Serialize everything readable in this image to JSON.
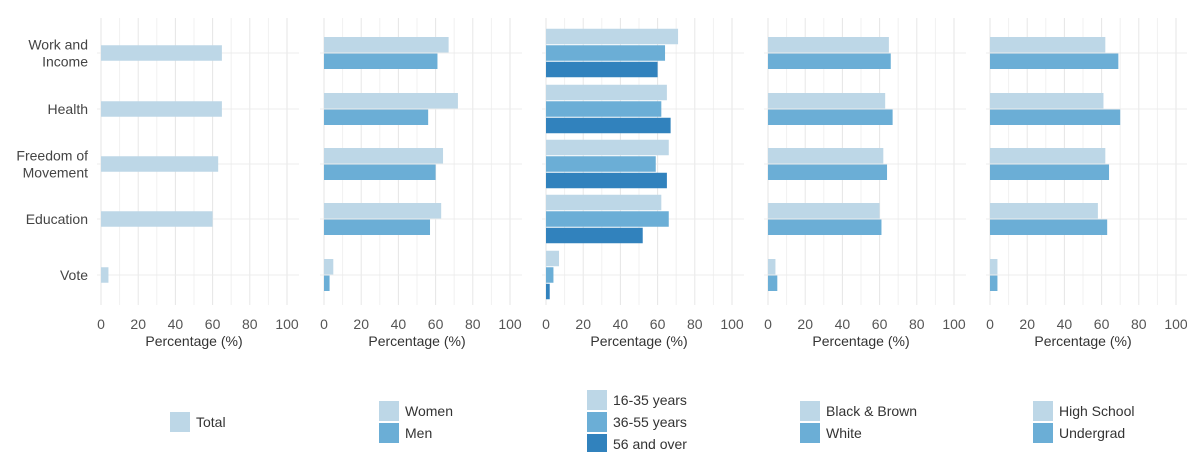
{
  "chart_data": {
    "type": "bar",
    "orientation": "horizontal",
    "categories": [
      "Work and Income",
      "Health",
      "Freedom of Movement",
      "Education",
      "Vote"
    ],
    "category_label_lines": [
      [
        "Work and",
        "Income"
      ],
      [
        "Health"
      ],
      [
        "Freedom of",
        "Movement"
      ],
      [
        "Education"
      ],
      [
        "Vote"
      ]
    ],
    "x_ticks": [
      "0",
      "20",
      "40",
      "60",
      "80",
      "100"
    ],
    "xlim": [
      0,
      100
    ],
    "grid": true,
    "panels": [
      {
        "xlabel": "Percentage (%)",
        "series": [
          {
            "name": "Total",
            "color": "#bdd7e7",
            "values": [
              65,
              65,
              63,
              60,
              4
            ]
          }
        ]
      },
      {
        "xlabel": "Percentage (%)",
        "series": [
          {
            "name": "Women",
            "color": "#bdd7e7",
            "values": [
              67,
              72,
              64,
              63,
              5
            ]
          },
          {
            "name": "Men",
            "color": "#6baed6",
            "values": [
              61,
              56,
              60,
              57,
              3
            ]
          }
        ]
      },
      {
        "xlabel": "Percentage (%)",
        "series": [
          {
            "name": "16-35 years",
            "color": "#bdd7e7",
            "values": [
              71,
              65,
              66,
              62,
              7
            ]
          },
          {
            "name": "36-55 years",
            "color": "#6baed6",
            "values": [
              64,
              62,
              59,
              66,
              4
            ]
          },
          {
            "name": "56 and over",
            "color": "#3182bd",
            "values": [
              60,
              67,
              65,
              52,
              2
            ]
          }
        ]
      },
      {
        "xlabel": "Percentage (%)",
        "series": [
          {
            "name": "Black & Brown",
            "color": "#bdd7e7",
            "values": [
              65,
              63,
              62,
              60,
              4
            ]
          },
          {
            "name": "White",
            "color": "#6baed6",
            "values": [
              66,
              67,
              64,
              61,
              5
            ]
          }
        ]
      },
      {
        "xlabel": "Percentage (%)",
        "series": [
          {
            "name": "High School",
            "color": "#bdd7e7",
            "values": [
              62,
              61,
              62,
              58,
              4
            ]
          },
          {
            "name": "Undergrad",
            "color": "#6baed6",
            "values": [
              69,
              70,
              64,
              63,
              4
            ]
          }
        ]
      }
    ]
  }
}
